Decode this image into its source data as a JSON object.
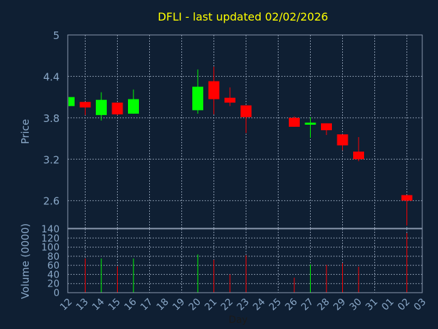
{
  "chart_data": {
    "type": "candlestick",
    "title": "DFLI - last updated 02/02/2026",
    "xlabel": "Day",
    "ylabel": "Price",
    "volume_label": "Volume (0000)",
    "x_ticks": [
      "12",
      "13",
      "14",
      "15",
      "16",
      "17",
      "18",
      "19",
      "20",
      "21",
      "22",
      "23",
      "24",
      "25",
      "26",
      "27",
      "28",
      "29",
      "30",
      "31",
      "01",
      "02",
      "03"
    ],
    "y_ticks": [
      "5",
      "4.4",
      "3.8",
      "3.2",
      "2.6"
    ],
    "price_range": [
      2.2,
      5.0
    ],
    "volume_ticks": [
      "140",
      "120",
      "100",
      "80",
      "60",
      "40",
      "20",
      "0"
    ],
    "volume_range": [
      0,
      140
    ],
    "grid": true,
    "candles": [
      {
        "day": "12",
        "open": 3.97,
        "high": 4.1,
        "low": 3.97,
        "close": 4.1
      },
      {
        "day": "13",
        "open": 4.03,
        "high": 4.03,
        "low": 3.84,
        "close": 3.95
      },
      {
        "day": "14",
        "open": 3.84,
        "high": 4.17,
        "low": 3.76,
        "close": 4.06
      },
      {
        "day": "15",
        "open": 4.02,
        "high": 4.02,
        "low": 3.84,
        "close": 3.85
      },
      {
        "day": "16",
        "open": 3.86,
        "high": 4.21,
        "low": 3.86,
        "close": 4.07
      },
      {
        "day": "20",
        "open": 3.91,
        "high": 4.5,
        "low": 3.86,
        "close": 4.25
      },
      {
        "day": "21",
        "open": 4.33,
        "high": 4.54,
        "low": 3.85,
        "close": 4.07
      },
      {
        "day": "22",
        "open": 4.09,
        "high": 4.24,
        "low": 3.97,
        "close": 4.02
      },
      {
        "day": "23",
        "open": 3.98,
        "high": 3.98,
        "low": 3.58,
        "close": 3.81
      },
      {
        "day": "26",
        "open": 3.8,
        "high": 3.82,
        "low": 3.67,
        "close": 3.67
      },
      {
        "day": "27",
        "open": 3.7,
        "high": 3.81,
        "low": 3.51,
        "close": 3.73
      },
      {
        "day": "28",
        "open": 3.72,
        "high": 3.72,
        "low": 3.55,
        "close": 3.62
      },
      {
        "day": "29",
        "open": 3.56,
        "high": 3.56,
        "low": 3.33,
        "close": 3.4
      },
      {
        "day": "30",
        "open": 3.31,
        "high": 3.52,
        "low": 3.17,
        "close": 3.2
      },
      {
        "day": "02",
        "open": 2.68,
        "high": 2.68,
        "low": 2.24,
        "close": 2.6
      }
    ],
    "volume": [
      {
        "day": "13",
        "value": 75
      },
      {
        "day": "14",
        "value": 75
      },
      {
        "day": "15",
        "value": 58
      },
      {
        "day": "16",
        "value": 75
      },
      {
        "day": "20",
        "value": 84
      },
      {
        "day": "21",
        "value": 72
      },
      {
        "day": "22",
        "value": 40
      },
      {
        "day": "23",
        "value": 82
      },
      {
        "day": "26",
        "value": 33
      },
      {
        "day": "27",
        "value": 62
      },
      {
        "day": "28",
        "value": 61
      },
      {
        "day": "29",
        "value": 65
      },
      {
        "day": "30",
        "value": 57
      },
      {
        "day": "02",
        "value": 131
      }
    ]
  },
  "colors": {
    "background": "#0f1f33",
    "plot_background": "#0f1f33",
    "grid": "#8c9bb0",
    "frame": "#8c9bb0",
    "title": "#ffff00",
    "axis_text": "#8aa8c8",
    "up": "#00ff00",
    "down": "#ff0000"
  }
}
